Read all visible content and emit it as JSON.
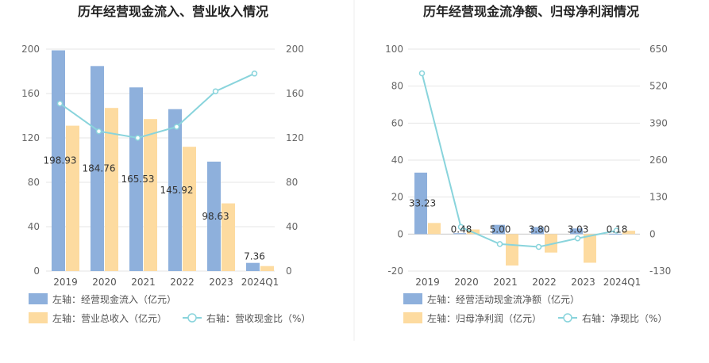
{
  "chart_data": [
    {
      "type": "bar",
      "title": "历年经营现金流入、营业收入情况",
      "categories": [
        "2019",
        "2020",
        "2021",
        "2022",
        "2023",
        "2024Q1"
      ],
      "y_left_ticks": [
        "0",
        "40",
        "80",
        "120",
        "160",
        "200"
      ],
      "y_right_ticks": [
        "0",
        "40",
        "80",
        "120",
        "160",
        "200"
      ],
      "ylim_left": [
        0,
        200
      ],
      "ylim_right": [
        0,
        200
      ],
      "series": [
        {
          "name": "左轴：经营现金流入（亿元）",
          "kind": "bar",
          "axis": "left",
          "color": "#8eb0dc",
          "values": [
            198.93,
            184.76,
            165.53,
            145.92,
            98.63,
            7.36
          ],
          "labels": [
            "198.93",
            "184.76",
            "165.53",
            "145.92",
            "98.63",
            "7.36"
          ]
        },
        {
          "name": "左轴：营业总收入（亿元）",
          "kind": "bar",
          "axis": "left",
          "color": "#fddba0",
          "values": [
            131,
            147,
            137,
            112,
            61,
            4.5
          ]
        },
        {
          "name": "右轴：营收现金比（%）",
          "kind": "line",
          "axis": "right",
          "color": "#89d4dc",
          "values": [
            151,
            126,
            120,
            130,
            162,
            178
          ]
        }
      ],
      "grid": true,
      "legend_position": "bottom"
    },
    {
      "type": "bar",
      "title": "历年经营现金流净额、归母净利润情况",
      "categories": [
        "2019",
        "2020",
        "2021",
        "2022",
        "2023",
        "2024Q1"
      ],
      "y_left_ticks": [
        "-20",
        "0",
        "20",
        "40",
        "60",
        "80",
        "100"
      ],
      "y_right_ticks": [
        "-130",
        "0",
        "130",
        "260",
        "390",
        "520",
        "650"
      ],
      "ylim_left": [
        -20,
        100
      ],
      "ylim_right": [
        -130,
        650
      ],
      "series": [
        {
          "name": "左轴：经营活动现金流净额（亿元）",
          "kind": "bar",
          "axis": "left",
          "color": "#8eb0dc",
          "values": [
            33.23,
            0.48,
            5.0,
            3.8,
            3.03,
            0.18
          ],
          "labels": [
            "33.23",
            "0.48",
            "5.00",
            "3.80",
            "3.03",
            "0.18"
          ]
        },
        {
          "name": "左轴：归母净利润（亿元）",
          "kind": "bar",
          "axis": "left",
          "color": "#fddba0",
          "values": [
            6,
            2.5,
            -17,
            -10,
            -15.5,
            1.8
          ]
        },
        {
          "name": "右轴：净现比（%）",
          "kind": "line",
          "axis": "right",
          "color": "#89d4dc",
          "values": [
            565,
            25,
            -35,
            -45,
            -15,
            12
          ]
        }
      ],
      "grid": true,
      "legend_position": "bottom"
    }
  ]
}
